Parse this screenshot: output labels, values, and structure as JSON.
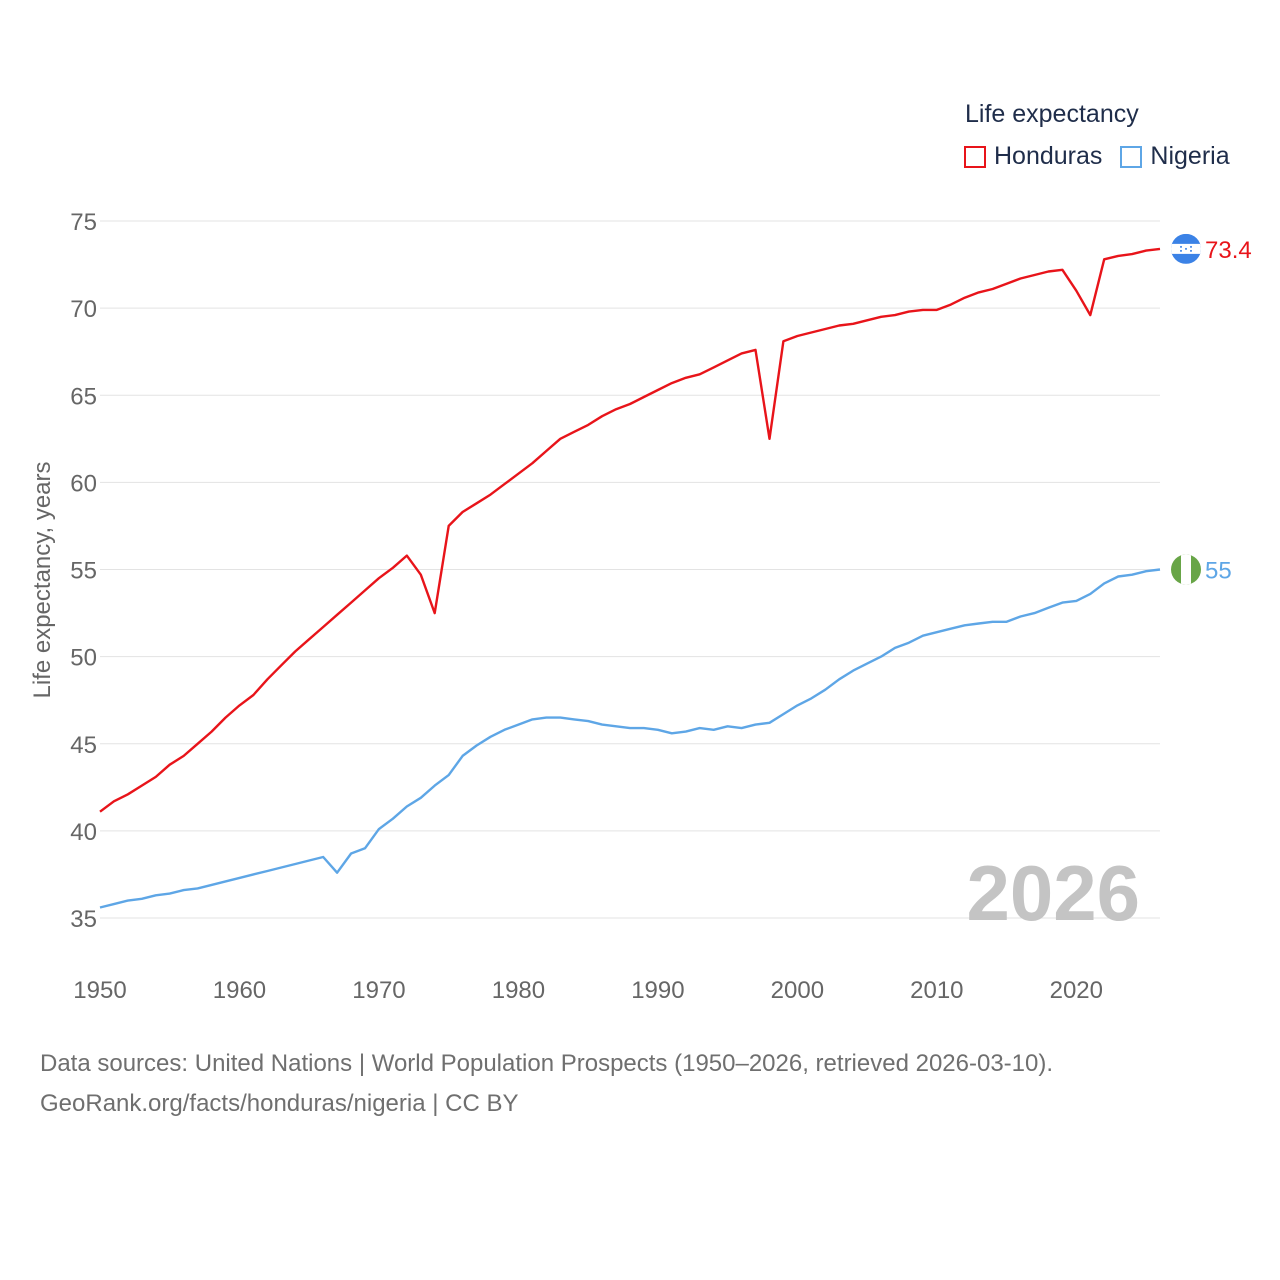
{
  "legend": {
    "title": "Life expectancy",
    "items": [
      {
        "name": "Honduras",
        "color": "#e8141a"
      },
      {
        "name": "Nigeria",
        "color": "#5ea6e6"
      }
    ]
  },
  "year_label": "2026",
  "footer": {
    "sources": "Data sources: United Nations | World Population Prospects (1950–2026, retrieved 2026-03-10).",
    "link": "GeoRank.org/facts/honduras/nigeria | CC BY"
  },
  "chart_data": {
    "type": "line",
    "title": "Life expectancy",
    "xlabel": "",
    "ylabel": "Life expectancy, years",
    "xlim": [
      1950,
      2026
    ],
    "ylim": [
      33,
      76
    ],
    "x_ticks": [
      1950,
      1960,
      1970,
      1980,
      1990,
      2000,
      2010,
      2020
    ],
    "y_ticks": [
      35,
      40,
      45,
      50,
      55,
      60,
      65,
      70,
      75
    ],
    "grid": true,
    "legend_position": "top-right",
    "x": [
      1950,
      1951,
      1952,
      1953,
      1954,
      1955,
      1956,
      1957,
      1958,
      1959,
      1960,
      1961,
      1962,
      1963,
      1964,
      1965,
      1966,
      1967,
      1968,
      1969,
      1970,
      1971,
      1972,
      1973,
      1974,
      1975,
      1976,
      1977,
      1978,
      1979,
      1980,
      1981,
      1982,
      1983,
      1984,
      1985,
      1986,
      1987,
      1988,
      1989,
      1990,
      1991,
      1992,
      1993,
      1994,
      1995,
      1996,
      1997,
      1998,
      1999,
      2000,
      2001,
      2002,
      2003,
      2004,
      2005,
      2006,
      2007,
      2008,
      2009,
      2010,
      2011,
      2012,
      2013,
      2014,
      2015,
      2016,
      2017,
      2018,
      2019,
      2020,
      2021,
      2022,
      2023,
      2024,
      2025,
      2026
    ],
    "series": [
      {
        "name": "Honduras",
        "color": "#e8141a",
        "end_label": "73.4",
        "values": [
          41.1,
          41.7,
          42.1,
          42.6,
          43.1,
          43.8,
          44.3,
          45.0,
          45.7,
          46.5,
          47.2,
          47.8,
          48.7,
          49.5,
          50.3,
          51.0,
          51.7,
          52.4,
          53.1,
          53.8,
          54.5,
          55.1,
          55.8,
          54.7,
          52.5,
          57.5,
          58.3,
          58.8,
          59.3,
          59.9,
          60.5,
          61.1,
          61.8,
          62.5,
          62.9,
          63.3,
          63.8,
          64.2,
          64.5,
          64.9,
          65.3,
          65.7,
          66.0,
          66.2,
          66.6,
          67.0,
          67.4,
          67.6,
          62.5,
          68.1,
          68.4,
          68.6,
          68.8,
          69.0,
          69.1,
          69.3,
          69.5,
          69.6,
          69.8,
          69.9,
          69.9,
          70.2,
          70.6,
          70.9,
          71.1,
          71.4,
          71.7,
          71.9,
          72.1,
          72.2,
          71.0,
          69.6,
          72.8,
          73.0,
          73.1,
          73.3,
          73.4
        ]
      },
      {
        "name": "Nigeria",
        "color": "#5ea6e6",
        "end_label": "55",
        "values": [
          35.6,
          35.8,
          36.0,
          36.1,
          36.3,
          36.4,
          36.6,
          36.7,
          36.9,
          37.1,
          37.3,
          37.5,
          37.7,
          37.9,
          38.1,
          38.3,
          38.5,
          37.6,
          38.7,
          39.0,
          40.1,
          40.7,
          41.4,
          41.9,
          42.6,
          43.2,
          44.3,
          44.9,
          45.4,
          45.8,
          46.1,
          46.4,
          46.5,
          46.5,
          46.4,
          46.3,
          46.1,
          46.0,
          45.9,
          45.9,
          45.8,
          45.6,
          45.7,
          45.9,
          45.8,
          46.0,
          45.9,
          46.1,
          46.2,
          46.7,
          47.2,
          47.6,
          48.1,
          48.7,
          49.2,
          49.6,
          50.0,
          50.5,
          50.8,
          51.2,
          51.4,
          51.6,
          51.8,
          51.9,
          52.0,
          52.0,
          52.3,
          52.5,
          52.8,
          53.1,
          53.2,
          53.6,
          54.2,
          54.6,
          54.7,
          54.9,
          55.0
        ]
      }
    ]
  }
}
